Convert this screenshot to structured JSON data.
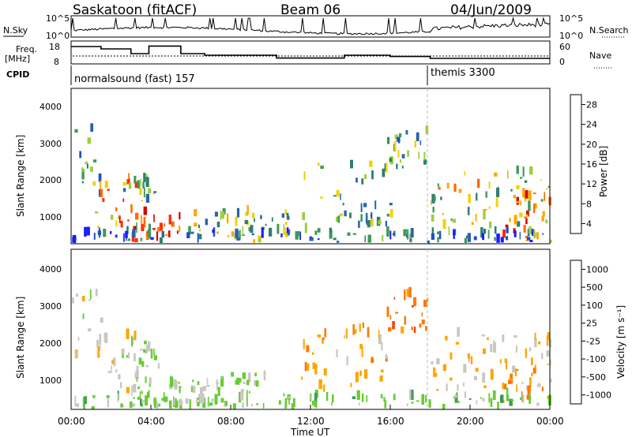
{
  "header": {
    "station": "Saskatoon (fitACF)",
    "beam": "Beam 06",
    "date": "04/Jun/2009"
  },
  "panels": {
    "nsky": {
      "left_label": "N.Sky",
      "right_label": "N.Search",
      "ticks_left": [
        "10^5",
        "10^0"
      ],
      "ticks_right": [
        "10^5",
        "10^0"
      ]
    },
    "freq": {
      "left_label_1": "Freq.",
      "left_label_2": "[MHz]",
      "right_label": "Nave",
      "ticks_left": [
        "18",
        "8"
      ],
      "ticks_right": [
        "60",
        "0"
      ]
    },
    "cpid": {
      "label": "CPID",
      "segments": [
        "normalsound (fast) 157",
        "themis 3300"
      ]
    }
  },
  "power_panel": {
    "ylabel": "Slant Range [km]",
    "yticks": [
      "4000",
      "3000",
      "2000",
      "1000"
    ],
    "colorbar_label": "Power [dB]",
    "colorbar_ticks": [
      "28",
      "24",
      "20",
      "16",
      "12",
      "8",
      "4"
    ],
    "colors": [
      "#1a1aff",
      "#1e50c8",
      "#2a64aa",
      "#2f7f6e",
      "#3e9a55",
      "#9bcf3c",
      "#f2d200",
      "#ffa500",
      "#ff6a00",
      "#ff2a00",
      "#d80000"
    ]
  },
  "velocity_panel": {
    "ylabel": "Slant Range [km]",
    "yticks": [
      "4000",
      "3000",
      "2000",
      "1000"
    ],
    "colorbar_label": "Velocity [m s⁻¹]",
    "colorbar_ticks": [
      "1000",
      "500",
      "100",
      "25",
      "-25",
      "-100",
      "-500",
      "-1000"
    ],
    "colors": [
      "#2030c0",
      "#2a5ab0",
      "#2f7f6e",
      "#3e9a55",
      "#66cc33",
      "#c8c8c0",
      "#ffa500",
      "#ff7800",
      "#ff3c00",
      "#e00000"
    ]
  },
  "xaxis": {
    "label": "Time UT",
    "ticks": [
      "00:00",
      "04:00",
      "08:00",
      "12:00",
      "16:00",
      "20:00",
      "00:00"
    ]
  },
  "chart_data": {
    "type": "heatmap",
    "title": "Saskatoon (fitACF)",
    "subtitle": "Beam 06",
    "date": "04/Jun/2009",
    "x_range_hours": [
      0,
      24
    ],
    "y_range_km": [
      180,
      4600
    ],
    "frequency_steps_mhz": [
      {
        "start_h": 0,
        "end_h": 1.5,
        "value": 17.5
      },
      {
        "start_h": 1.5,
        "end_h": 3.0,
        "value": 16.0
      },
      {
        "start_h": 3.0,
        "end_h": 3.9,
        "value": 13.0
      },
      {
        "start_h": 3.9,
        "end_h": 5.5,
        "value": 17.8
      },
      {
        "start_h": 5.5,
        "end_h": 6.7,
        "value": 13.0
      },
      {
        "start_h": 6.7,
        "end_h": 10.3,
        "value": 12.0
      },
      {
        "start_h": 10.3,
        "end_h": 13.7,
        "value": 10.2
      },
      {
        "start_h": 13.7,
        "end_h": 16.0,
        "value": 12.0
      },
      {
        "start_h": 16.0,
        "end_h": 18.0,
        "value": 11.2
      },
      {
        "start_h": 18.0,
        "end_h": 24.0,
        "value": 10.0
      }
    ],
    "cpid_change_hours": 18.0,
    "panels": [
      {
        "name": "Power",
        "unit": "dB",
        "range": [
          0,
          30
        ],
        "ticks": [
          4,
          8,
          12,
          16,
          20,
          24,
          28
        ]
      },
      {
        "name": "Velocity",
        "unit": "m s-1",
        "range": [
          -1000,
          1000
        ],
        "ticks": [
          1000,
          500,
          100,
          25,
          -25,
          -100,
          -500,
          -1000
        ]
      }
    ],
    "echo_regions": [
      {
        "t0": 0.0,
        "t1": 1.5,
        "r0": 1400,
        "r1": 3500,
        "power_db": 10,
        "velocity": -100
      },
      {
        "t0": 1.0,
        "t1": 3.5,
        "r0": 600,
        "r1": 2200,
        "power_db": 22,
        "velocity": -150
      },
      {
        "t0": 3.0,
        "t1": 5.5,
        "r0": 200,
        "r1": 1000,
        "power_db": 26,
        "velocity": 50
      },
      {
        "t0": 2.5,
        "t1": 4.5,
        "r0": 1300,
        "r1": 2000,
        "power_db": 12,
        "velocity": 0
      },
      {
        "t0": 6.0,
        "t1": 11.0,
        "r0": 200,
        "r1": 1100,
        "power_db": 14,
        "velocity": 0
      },
      {
        "t0": 11.5,
        "t1": 16.0,
        "r0": 600,
        "r1": 2500,
        "power_db": 12,
        "velocity": -300
      },
      {
        "t0": 15.5,
        "t1": 18.0,
        "r0": 2200,
        "r1": 3300,
        "power_db": 12,
        "velocity": -500
      },
      {
        "t0": 18.0,
        "t1": 24.0,
        "r0": 600,
        "r1": 2200,
        "power_db": 16,
        "velocity": -200
      },
      {
        "t0": 21.5,
        "t1": 24.0,
        "r0": 200,
        "r1": 1500,
        "power_db": 24,
        "velocity": -400
      },
      {
        "t0": 0.0,
        "t1": 24.0,
        "r0": 180,
        "r1": 500,
        "power_db": 8,
        "velocity": 80
      }
    ]
  }
}
